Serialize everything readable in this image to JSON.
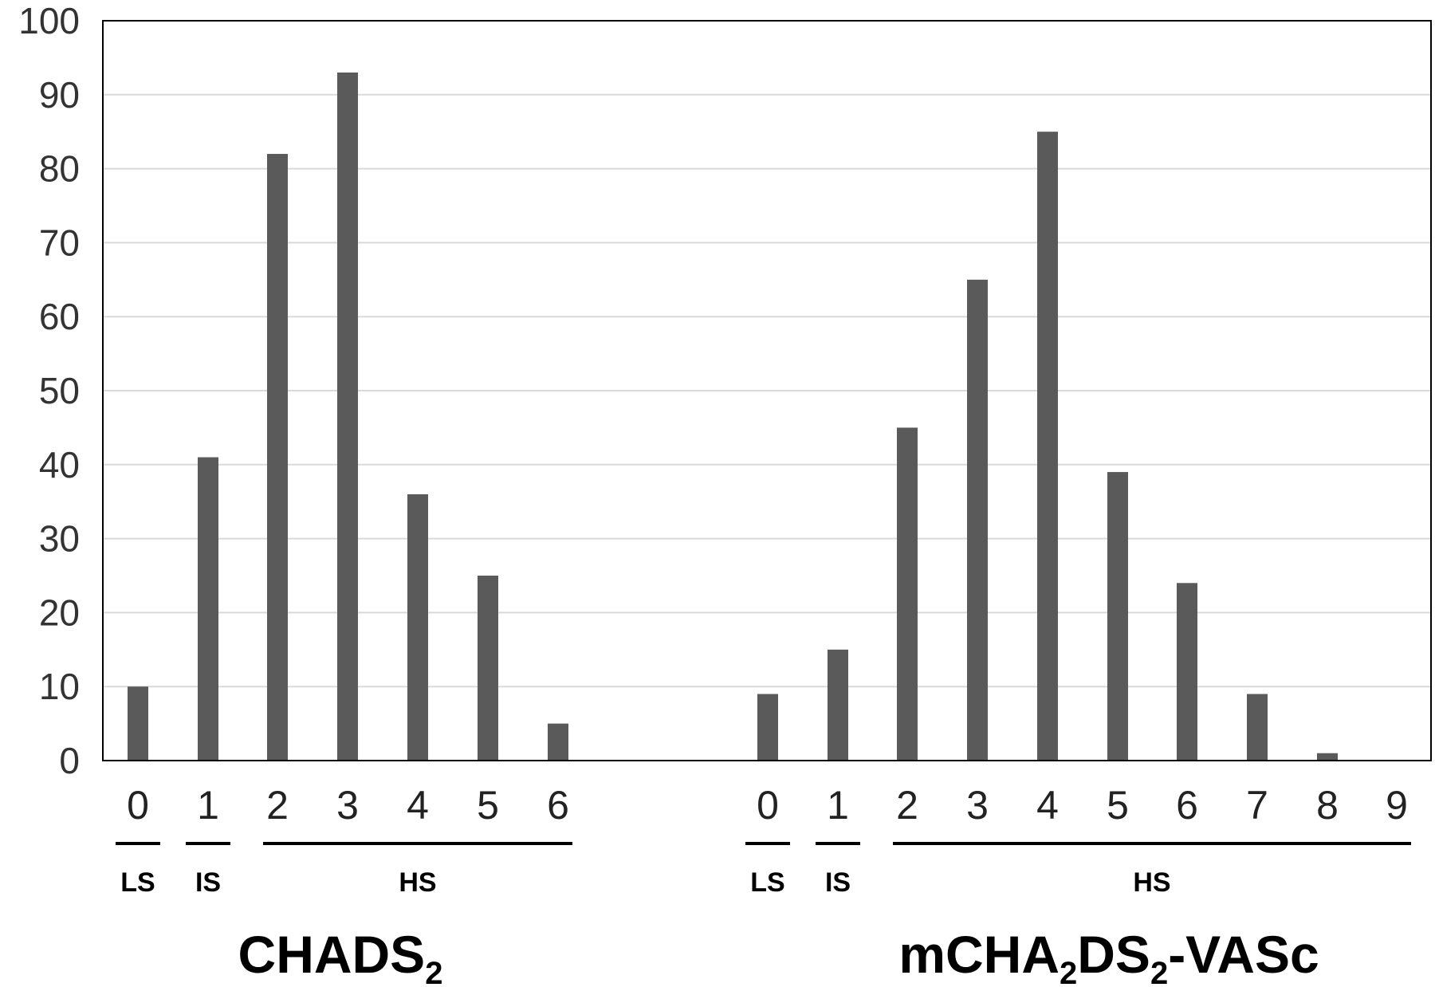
{
  "chart_data": {
    "type": "bar",
    "ylim": [
      0,
      100
    ],
    "yticks": [
      0,
      10,
      20,
      30,
      40,
      50,
      60,
      70,
      80,
      90,
      100
    ],
    "grid": true,
    "bar_color": "#5a5a5a",
    "groups": [
      {
        "name": "CHADS",
        "subscript": "2",
        "categories": [
          "0",
          "1",
          "2",
          "3",
          "4",
          "5",
          "6"
        ],
        "values": [
          10,
          41,
          82,
          93,
          36,
          25,
          5
        ],
        "risk_bands": [
          {
            "label": "LS",
            "from": "0",
            "to": "0"
          },
          {
            "label": "IS",
            "from": "1",
            "to": "1"
          },
          {
            "label": "HS",
            "from": "2",
            "to": "6"
          }
        ]
      },
      {
        "name_parts": [
          "mCHA",
          "2",
          "DS",
          "2",
          "-VASc"
        ],
        "categories": [
          "0",
          "1",
          "2",
          "3",
          "4",
          "5",
          "6",
          "7",
          "8",
          "9"
        ],
        "values": [
          9,
          15,
          45,
          65,
          85,
          39,
          24,
          9,
          1,
          0
        ],
        "risk_bands": [
          {
            "label": "LS",
            "from": "0",
            "to": "0"
          },
          {
            "label": "IS",
            "from": "1",
            "to": "1"
          },
          {
            "label": "HS",
            "from": "2",
            "to": "9"
          }
        ]
      }
    ]
  }
}
